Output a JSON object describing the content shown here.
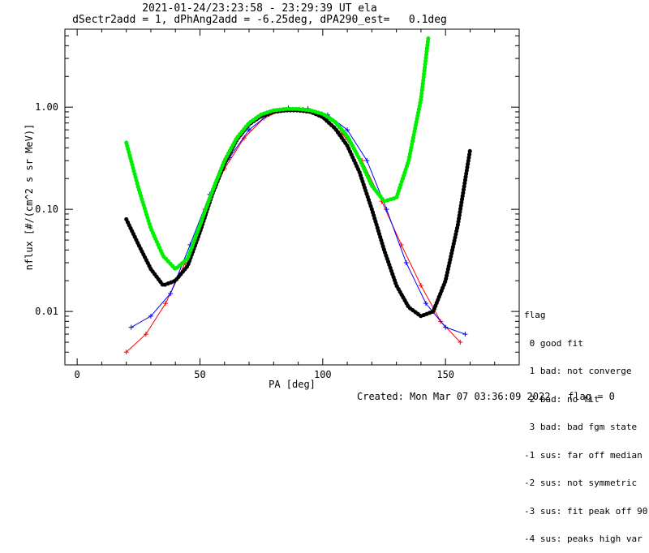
{
  "title_line1": "2021-01-24/23:23:58 - 23:29:39 UT ela",
  "title_line2": "dSectr2add = 1, dPhAng2add = -6.25deg, dPA290_est=   0.1deg",
  "legend": {
    "title": "flag",
    "items": [
      " 0 good fit",
      " 1 bad: not converge",
      " 2 bad: no fit",
      " 3 bad: bad fgm state",
      "-1 sus: far off median",
      "-2 sus: not symmetric",
      "-3 sus: fit peak off 90",
      "-4 sus: peaks high var"
    ]
  },
  "footer": {
    "created": "Created: Mon Mar 07 03:36:09 2022",
    "flag": "flag = 0"
  },
  "colors": {
    "red_series": "#ff0000",
    "blue_series": "#0000ff",
    "fit_black": "#000000",
    "fit_green": "#00ee00"
  },
  "chart_data": {
    "type": "line",
    "xlabel": "PA [deg]",
    "ylabel": "nflux [#/(cm^2 s sr MeV)]",
    "xlim": [
      -5,
      180
    ],
    "ylim": [
      0.003,
      5.8
    ],
    "yscale": "log",
    "xticks": [
      0,
      50,
      100,
      150
    ],
    "xtick_labels": [
      "0",
      "50",
      "100",
      "150"
    ],
    "yticks": [
      0.01,
      0.1,
      1.0
    ],
    "ytick_labels": [
      "0.01",
      "0.10",
      "1.00"
    ],
    "series": [
      {
        "color": "red",
        "x": [
          20,
          28,
          36,
          44,
          52,
          60,
          68,
          76,
          84,
          92,
          100,
          108,
          116,
          124,
          132,
          140,
          148,
          156
        ],
        "y": [
          0.004,
          0.006,
          0.012,
          0.03,
          0.1,
          0.25,
          0.5,
          0.78,
          0.95,
          0.95,
          0.8,
          0.55,
          0.3,
          0.12,
          0.045,
          0.018,
          0.008,
          0.005
        ]
      },
      {
        "color": "blue",
        "x": [
          22,
          30,
          38,
          46,
          54,
          62,
          70,
          78,
          86,
          94,
          102,
          110,
          118,
          126,
          134,
          142,
          150,
          158
        ],
        "y": [
          0.007,
          0.009,
          0.015,
          0.045,
          0.14,
          0.32,
          0.6,
          0.85,
          0.98,
          0.97,
          0.84,
          0.6,
          0.3,
          0.1,
          0.03,
          0.012,
          0.007,
          0.006
        ]
      }
    ],
    "fits": [
      {
        "color": "black",
        "x": [
          20,
          25,
          30,
          35,
          40,
          45,
          50,
          55,
          60,
          65,
          70,
          75,
          80,
          85,
          90,
          95,
          100,
          105,
          110,
          115,
          120,
          125,
          130,
          135,
          140,
          145,
          150,
          155,
          160
        ],
        "y": [
          0.08,
          0.045,
          0.026,
          0.018,
          0.02,
          0.028,
          0.06,
          0.14,
          0.28,
          0.48,
          0.68,
          0.82,
          0.9,
          0.93,
          0.93,
          0.9,
          0.8,
          0.62,
          0.42,
          0.23,
          0.1,
          0.04,
          0.018,
          0.011,
          0.009,
          0.01,
          0.02,
          0.07,
          0.38
        ]
      },
      {
        "color": "green",
        "x": [
          20,
          25,
          30,
          35,
          40,
          45,
          50,
          55,
          60,
          65,
          70,
          75,
          80,
          85,
          90,
          95,
          100,
          105,
          110,
          115,
          120,
          125,
          130,
          135,
          140,
          143
        ],
        "y": [
          0.45,
          0.16,
          0.065,
          0.035,
          0.026,
          0.033,
          0.07,
          0.15,
          0.3,
          0.5,
          0.7,
          0.85,
          0.93,
          0.96,
          0.96,
          0.93,
          0.86,
          0.72,
          0.52,
          0.31,
          0.17,
          0.12,
          0.13,
          0.3,
          1.2,
          4.8
        ]
      }
    ]
  }
}
